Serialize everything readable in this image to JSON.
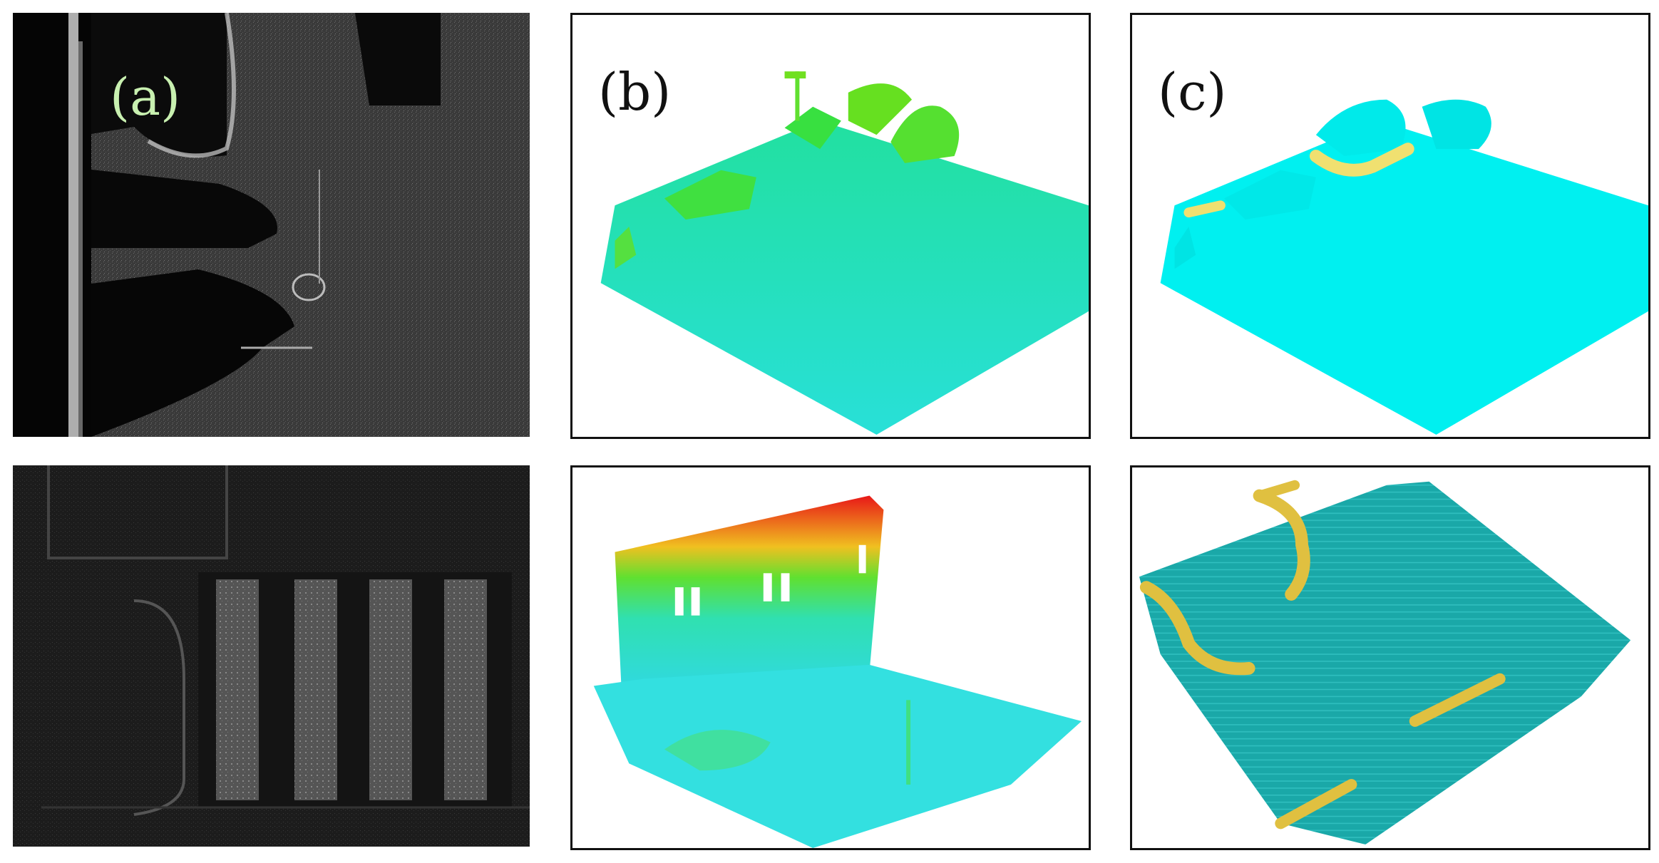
{
  "labels": {
    "a": "(a)",
    "b": "(b)",
    "c": "(c)"
  },
  "colors": {
    "intensity_background": "#050505",
    "intensity_light": "#d8d8d8",
    "elevation_low": "#22e0e8",
    "elevation_mid": "#28e890",
    "elevation_high": "#e81818",
    "ground_class": "#00f0f0",
    "curb_class": "#f0e070",
    "ground_dark_class": "#1aa8a8",
    "curb_dark_class": "#e0c040",
    "label_light": "#c8f0b0",
    "label_dark": "#111111"
  },
  "panels": [
    {
      "id": "top-intensity",
      "content": "lidar-intensity-image"
    },
    {
      "id": "top-elevation",
      "content": "point-cloud-elevation"
    },
    {
      "id": "top-classified",
      "content": "point-cloud-classified"
    },
    {
      "id": "bottom-intensity",
      "content": "lidar-intensity-image"
    },
    {
      "id": "bottom-elevation",
      "content": "point-cloud-elevation"
    },
    {
      "id": "bottom-classified",
      "content": "point-cloud-classified"
    }
  ]
}
